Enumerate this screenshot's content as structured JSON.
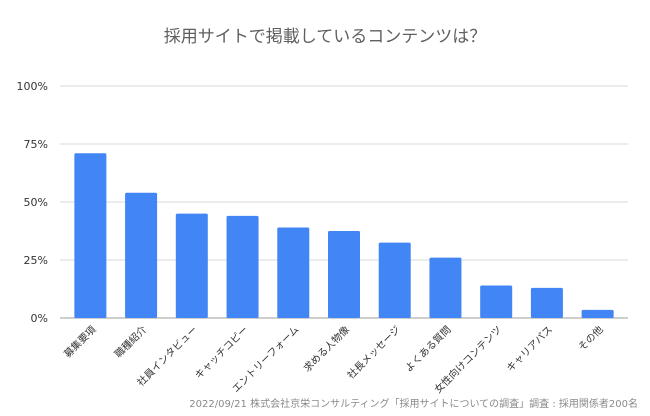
{
  "chart_data": {
    "type": "bar",
    "title": "採用サイトで掲載しているコンテンツは？",
    "categories": [
      "募集要項",
      "職種紹介",
      "社員インタビュー",
      "キャッチコピー",
      "エントリーフォーム",
      "求める人物像",
      "社長メッセージ",
      "よくある質問",
      "女性向けコンテンツ",
      "キャリアパス",
      "その他"
    ],
    "series": [
      {
        "values": [
          71,
          54,
          45,
          44,
          39,
          37.5,
          32.5,
          26,
          14,
          13,
          3.5
        ]
      }
    ],
    "ylim": [
      0,
      100
    ],
    "yticks": [
      0,
      25,
      50,
      75,
      100
    ],
    "ytick_labels": [
      "0%",
      "25%",
      "50%",
      "75%",
      "100%"
    ],
    "bar_color": "#4285f4",
    "grid": true,
    "xlabel": "",
    "ylabel": ""
  },
  "source_note": "2022/09/21 株式会社京栄コンサルティング「採用サイトについての調査」調査 : 採用関係者200名"
}
